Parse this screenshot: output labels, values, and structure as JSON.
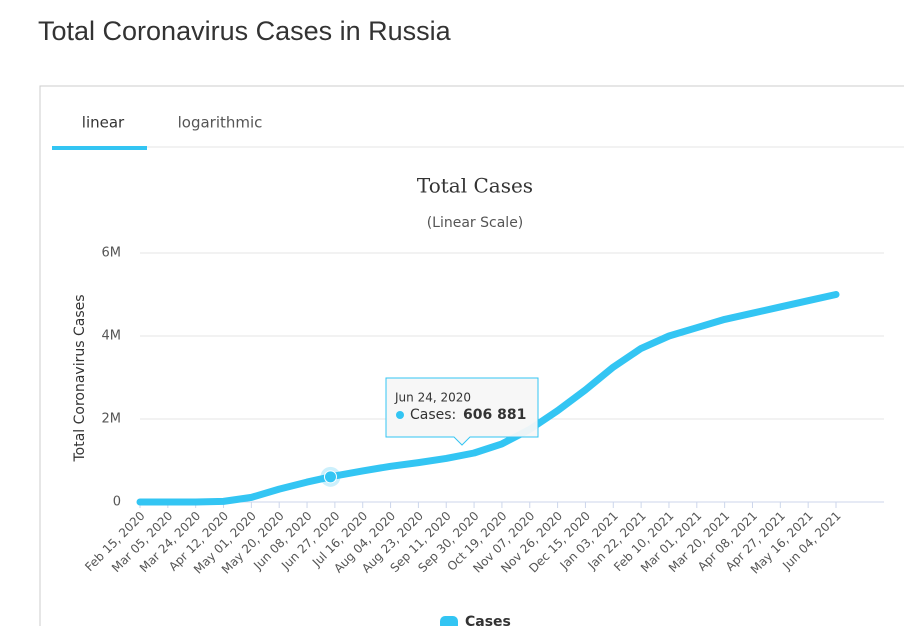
{
  "page_title": "Total Coronavirus Cases in Russia",
  "tabs": [
    "linear",
    "logarithmic"
  ],
  "chart_data": {
    "type": "line",
    "title": "Total Cases",
    "subtitle": "(Linear Scale)",
    "y_label": "Total Coronavirus Cases",
    "x": [
      "Feb 15, 2020",
      "Mar 05, 2020",
      "Mar 24, 2020",
      "Apr 12, 2020",
      "May 01, 2020",
      "May 20, 2020",
      "Jun 08, 2020",
      "Jun 27, 2020",
      "Jul 16, 2020",
      "Aug 04, 2020",
      "Aug 23, 2020",
      "Sep 11, 2020",
      "Sep 30, 2020",
      "Oct 19, 2020",
      "Nov 07, 2020",
      "Nov 26, 2020",
      "Dec 15, 2020",
      "Jan 03, 2021",
      "Jan 22, 2021",
      "Feb 10, 2021",
      "Mar 01, 2021",
      "Mar 20, 2021",
      "Apr 08, 2021",
      "Apr 27, 2021",
      "May 16, 2021",
      "Jun 04, 2021"
    ],
    "series": [
      {
        "name": "Cases",
        "color": "#33c5f3",
        "values": [
          0,
          0,
          400,
          15000,
          110000,
          310000,
          480000,
          630000,
          750000,
          860000,
          950000,
          1050000,
          1180000,
          1400000,
          1750000,
          2200000,
          2700000,
          3250000,
          3700000,
          4000000,
          4200000,
          4400000,
          4550000,
          4700000,
          4850000,
          5000000
        ]
      }
    ],
    "xticks": [
      "Feb 15, 2020",
      "Mar 05, 2020",
      "Mar 24, 2020",
      "Apr 12, 2020",
      "May 01, 2020",
      "May 20, 2020",
      "Jun 08, 2020",
      "Jun 27, 2020",
      "Jul 16, 2020",
      "Aug 04, 2020",
      "Aug 23, 2020",
      "Sep 11, 2020",
      "Sep 30, 2020",
      "Oct 19, 2020",
      "Nov 07, 2020",
      "Nov 26, 2020",
      "Dec 15, 2020",
      "Jan 03, 2021",
      "Jan 22, 2021",
      "Feb 10, 2021",
      "Mar 01, 2021",
      "Mar 20, 2021",
      "Apr 08, 2021",
      "Apr 27, 2021",
      "May 16, 2021",
      "Jun 04, 2021"
    ],
    "ylim": [
      0,
      6000000
    ],
    "yticks": [
      0,
      {
        "value": 2000000,
        "label": "2M"
      },
      {
        "value": 4000000,
        "label": "4M"
      },
      {
        "value": 6000000,
        "label": "6M"
      }
    ],
    "grid": true,
    "tooltip": {
      "x": "Jun 24, 2020",
      "label": "Cases:",
      "value": 606881,
      "value_label": "606 881"
    }
  }
}
